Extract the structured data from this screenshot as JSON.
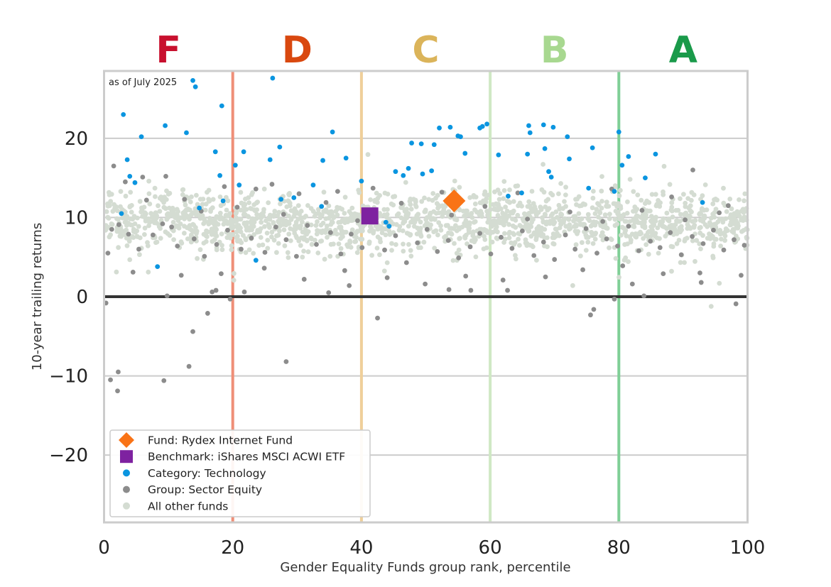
{
  "chart_data": {
    "type": "scatter",
    "annotation": "as of July 2025",
    "xlabel": "Gender Equality Funds group rank, percentile",
    "ylabel": "10-year trailing returns",
    "xlim": [
      0,
      100
    ],
    "ylim": [
      -28.5,
      28.5
    ],
    "xticks": [
      "0",
      "20",
      "40",
      "60",
      "80",
      "100"
    ],
    "yticks": [
      "−20",
      "−10",
      "0",
      "10",
      "20"
    ],
    "grid": "horizontal",
    "legend_position": "bottom-left",
    "grade_bands": [
      {
        "label": "F",
        "from": 0,
        "to": 20,
        "color": "#c8102e",
        "line_color": "#ef8f78"
      },
      {
        "label": "D",
        "from": 20,
        "to": 40,
        "color": "#d9480f",
        "line_color": "#efcf9a"
      },
      {
        "label": "C",
        "from": 40,
        "to": 60,
        "color": "#dbb45a",
        "line_color": "#cfe8c4"
      },
      {
        "label": "B",
        "from": 60,
        "to": 80,
        "color": "#a8d890",
        "line_color": "#7fcf96"
      },
      {
        "label": "A",
        "from": 80,
        "to": 100,
        "color": "#1a9a4a",
        "line_color": "#7fcf96"
      }
    ],
    "series": [
      {
        "name": "Fund: Rydex Internet Fund",
        "marker": "diamond",
        "color": "#f97316",
        "points": [
          [
            54.4,
            12.1
          ]
        ]
      },
      {
        "name": "Benchmark: iShares MSCI ACWI ETF",
        "marker": "square",
        "color": "#7e22a0",
        "points": [
          [
            41.3,
            10.2
          ]
        ]
      },
      {
        "name": "Category: Technology",
        "marker": "circle",
        "color": "#0a95e0",
        "points": [
          [
            13.8,
            27.3
          ],
          [
            14.2,
            26.5
          ],
          [
            26.2,
            27.6
          ],
          [
            18.3,
            24.1
          ],
          [
            3.0,
            23.0
          ],
          [
            9.5,
            21.6
          ],
          [
            12.8,
            20.7
          ],
          [
            5.8,
            20.2
          ],
          [
            35.5,
            20.8
          ],
          [
            27.3,
            18.9
          ],
          [
            21.7,
            18.3
          ],
          [
            3.6,
            17.3
          ],
          [
            25.8,
            17.3
          ],
          [
            34.0,
            17.2
          ],
          [
            37.6,
            17.5
          ],
          [
            20.4,
            16.6
          ],
          [
            4.0,
            15.2
          ],
          [
            4.8,
            14.4
          ],
          [
            18.0,
            15.3
          ],
          [
            21.0,
            14.1
          ],
          [
            17.3,
            18.3
          ],
          [
            14.8,
            11.2
          ],
          [
            2.7,
            10.5
          ],
          [
            18.5,
            12.1
          ],
          [
            27.5,
            12.3
          ],
          [
            29.5,
            12.5
          ],
          [
            32.5,
            14.1
          ],
          [
            33.8,
            11.4
          ],
          [
            40.0,
            14.6
          ],
          [
            23.6,
            4.6
          ],
          [
            8.3,
            3.8
          ],
          [
            43.8,
            9.4
          ],
          [
            44.3,
            8.9
          ],
          [
            45.3,
            15.8
          ],
          [
            46.5,
            15.3
          ],
          [
            47.3,
            16.2
          ],
          [
            47.8,
            19.4
          ],
          [
            49.3,
            19.3
          ],
          [
            49.5,
            15.5
          ],
          [
            50.9,
            15.9
          ],
          [
            51.3,
            19.2
          ],
          [
            52.1,
            21.3
          ],
          [
            53.8,
            21.4
          ],
          [
            55.0,
            20.3
          ],
          [
            55.4,
            20.2
          ],
          [
            56.1,
            18.1
          ],
          [
            58.4,
            21.3
          ],
          [
            58.8,
            21.5
          ],
          [
            59.5,
            21.8
          ],
          [
            61.3,
            17.9
          ],
          [
            62.8,
            12.7
          ],
          [
            64.9,
            13.1
          ],
          [
            65.8,
            18.0
          ],
          [
            66.0,
            21.6
          ],
          [
            66.2,
            20.7
          ],
          [
            68.3,
            21.7
          ],
          [
            68.5,
            18.7
          ],
          [
            69.8,
            21.4
          ],
          [
            69.1,
            15.8
          ],
          [
            69.5,
            15.1
          ],
          [
            72.0,
            20.2
          ],
          [
            72.3,
            17.4
          ],
          [
            75.3,
            13.7
          ],
          [
            75.9,
            18.8
          ],
          [
            79.3,
            13.3
          ],
          [
            80.0,
            20.8
          ],
          [
            80.5,
            16.6
          ],
          [
            81.5,
            17.7
          ],
          [
            84.1,
            15.0
          ],
          [
            85.7,
            18.0
          ],
          [
            93.0,
            11.9
          ]
        ]
      },
      {
        "name": "Group: Sector Equity",
        "marker": "circle",
        "color": "#8c8c8c",
        "points": [
          [
            0.3,
            -0.8
          ],
          [
            1.0,
            -10.5
          ],
          [
            2.1,
            -11.9
          ],
          [
            2.2,
            -9.5
          ],
          [
            9.3,
            -10.6
          ],
          [
            13.2,
            -8.8
          ],
          [
            13.8,
            -4.4
          ],
          [
            16.1,
            -2.1
          ],
          [
            28.3,
            -8.2
          ],
          [
            42.5,
            -2.7
          ],
          [
            9.8,
            0.1
          ],
          [
            17.4,
            0.8
          ],
          [
            19.6,
            -0.3
          ],
          [
            16.8,
            0.6
          ],
          [
            21.8,
            0.6
          ],
          [
            34.9,
            0.5
          ],
          [
            38.1,
            1.4
          ],
          [
            53.6,
            0.9
          ],
          [
            57.0,
            0.8
          ],
          [
            62.7,
            0.8
          ],
          [
            79.3,
            -0.3
          ],
          [
            82.1,
            1.6
          ],
          [
            92.8,
            1.8
          ],
          [
            98.2,
            -0.9
          ],
          [
            83.9,
            0.1
          ],
          [
            76.1,
            -1.6
          ],
          [
            75.6,
            -2.3
          ],
          [
            1.5,
            16.5
          ],
          [
            3.3,
            14.5
          ],
          [
            6.0,
            15.1
          ],
          [
            9.6,
            15.2
          ],
          [
            12.5,
            12.3
          ],
          [
            18.7,
            13.9
          ],
          [
            23.6,
            13.6
          ],
          [
            26.1,
            14.2
          ],
          [
            30.3,
            13.0
          ],
          [
            36.3,
            13.3
          ],
          [
            41.8,
            13.7
          ],
          [
            52.5,
            13.2
          ],
          [
            64.3,
            13.1
          ],
          [
            78.9,
            13.6
          ],
          [
            88.2,
            12.6
          ],
          [
            91.5,
            16.0
          ],
          [
            97.0,
            11.5
          ],
          [
            1.2,
            8.5
          ],
          [
            2.3,
            9.1
          ],
          [
            3.8,
            7.9
          ],
          [
            5.4,
            6.0
          ],
          [
            7.6,
            7.8
          ],
          [
            9.1,
            9.2
          ],
          [
            10.5,
            8.8
          ],
          [
            11.4,
            6.4
          ],
          [
            14.0,
            7.3
          ],
          [
            15.6,
            5.1
          ],
          [
            17.5,
            6.6
          ],
          [
            19.2,
            8.4
          ],
          [
            21.3,
            6.0
          ],
          [
            22.9,
            7.4
          ],
          [
            25.0,
            5.6
          ],
          [
            26.7,
            8.8
          ],
          [
            28.3,
            7.2
          ],
          [
            29.9,
            5.1
          ],
          [
            31.6,
            9.0
          ],
          [
            33.0,
            6.6
          ],
          [
            35.2,
            8.1
          ],
          [
            36.8,
            5.4
          ],
          [
            38.4,
            7.9
          ],
          [
            40.1,
            6.2
          ],
          [
            43.6,
            5.9
          ],
          [
            45.3,
            7.7
          ],
          [
            47.0,
            4.3
          ],
          [
            48.7,
            6.8
          ],
          [
            50.2,
            8.5
          ],
          [
            51.8,
            5.7
          ],
          [
            53.5,
            7.1
          ],
          [
            55.1,
            4.9
          ],
          [
            56.9,
            6.3
          ],
          [
            58.4,
            8.0
          ],
          [
            60.1,
            5.4
          ],
          [
            61.7,
            7.5
          ],
          [
            63.4,
            6.1
          ],
          [
            65.0,
            8.3
          ],
          [
            66.8,
            5.2
          ],
          [
            68.3,
            6.9
          ],
          [
            70.0,
            4.7
          ],
          [
            71.7,
            7.8
          ],
          [
            73.2,
            6.0
          ],
          [
            74.9,
            8.6
          ],
          [
            76.6,
            5.5
          ],
          [
            78.1,
            7.3
          ],
          [
            79.8,
            6.4
          ],
          [
            81.5,
            8.9
          ],
          [
            83.1,
            5.8
          ],
          [
            84.9,
            7.0
          ],
          [
            86.4,
            6.2
          ],
          [
            88.0,
            8.1
          ],
          [
            89.7,
            5.3
          ],
          [
            91.4,
            7.6
          ],
          [
            93.1,
            6.7
          ],
          [
            94.7,
            8.4
          ],
          [
            96.3,
            5.9
          ],
          [
            97.9,
            7.2
          ],
          [
            99.5,
            6.5
          ],
          [
            0.6,
            5.5
          ],
          [
            4.5,
            3.1
          ],
          [
            12.0,
            2.7
          ],
          [
            18.2,
            2.9
          ],
          [
            24.9,
            3.6
          ],
          [
            31.1,
            2.2
          ],
          [
            37.4,
            3.3
          ],
          [
            44.0,
            2.4
          ],
          [
            49.9,
            1.6
          ],
          [
            56.2,
            2.6
          ],
          [
            62.0,
            2.1
          ],
          [
            68.6,
            2.5
          ],
          [
            74.4,
            3.4
          ],
          [
            80.6,
            3.9
          ],
          [
            86.9,
            2.9
          ],
          [
            92.6,
            3.0
          ],
          [
            99.0,
            2.7
          ],
          [
            6.6,
            12.2
          ],
          [
            15.1,
            10.8
          ],
          [
            20.7,
            11.3
          ],
          [
            27.9,
            10.4
          ],
          [
            34.5,
            11.9
          ],
          [
            39.4,
            9.6
          ],
          [
            46.2,
            11.8
          ],
          [
            54.0,
            10.3
          ],
          [
            59.2,
            11.4
          ],
          [
            65.8,
            9.8
          ],
          [
            72.4,
            10.7
          ],
          [
            77.5,
            9.5
          ],
          [
            83.6,
            10.9
          ],
          [
            90.3,
            9.7
          ],
          [
            95.6,
            10.6
          ]
        ]
      },
      {
        "name": "All other funds",
        "marker": "circle",
        "color": "#d4dcd2",
        "points": "dense cloud"
      }
    ]
  },
  "legend": {
    "items": [
      {
        "label": "Fund: Rydex Internet Fund",
        "marker": "diamond",
        "color": "#f97316"
      },
      {
        "label": "Benchmark: iShares MSCI ACWI ETF",
        "marker": "square",
        "color": "#7e22a0"
      },
      {
        "label": "Category: Technology",
        "marker": "circle",
        "color": "#0a95e0"
      },
      {
        "label": "Group: Sector Equity",
        "marker": "circle",
        "color": "#8c8c8c"
      },
      {
        "label": "All other funds",
        "marker": "circle",
        "color": "#d4dcd2"
      }
    ]
  }
}
